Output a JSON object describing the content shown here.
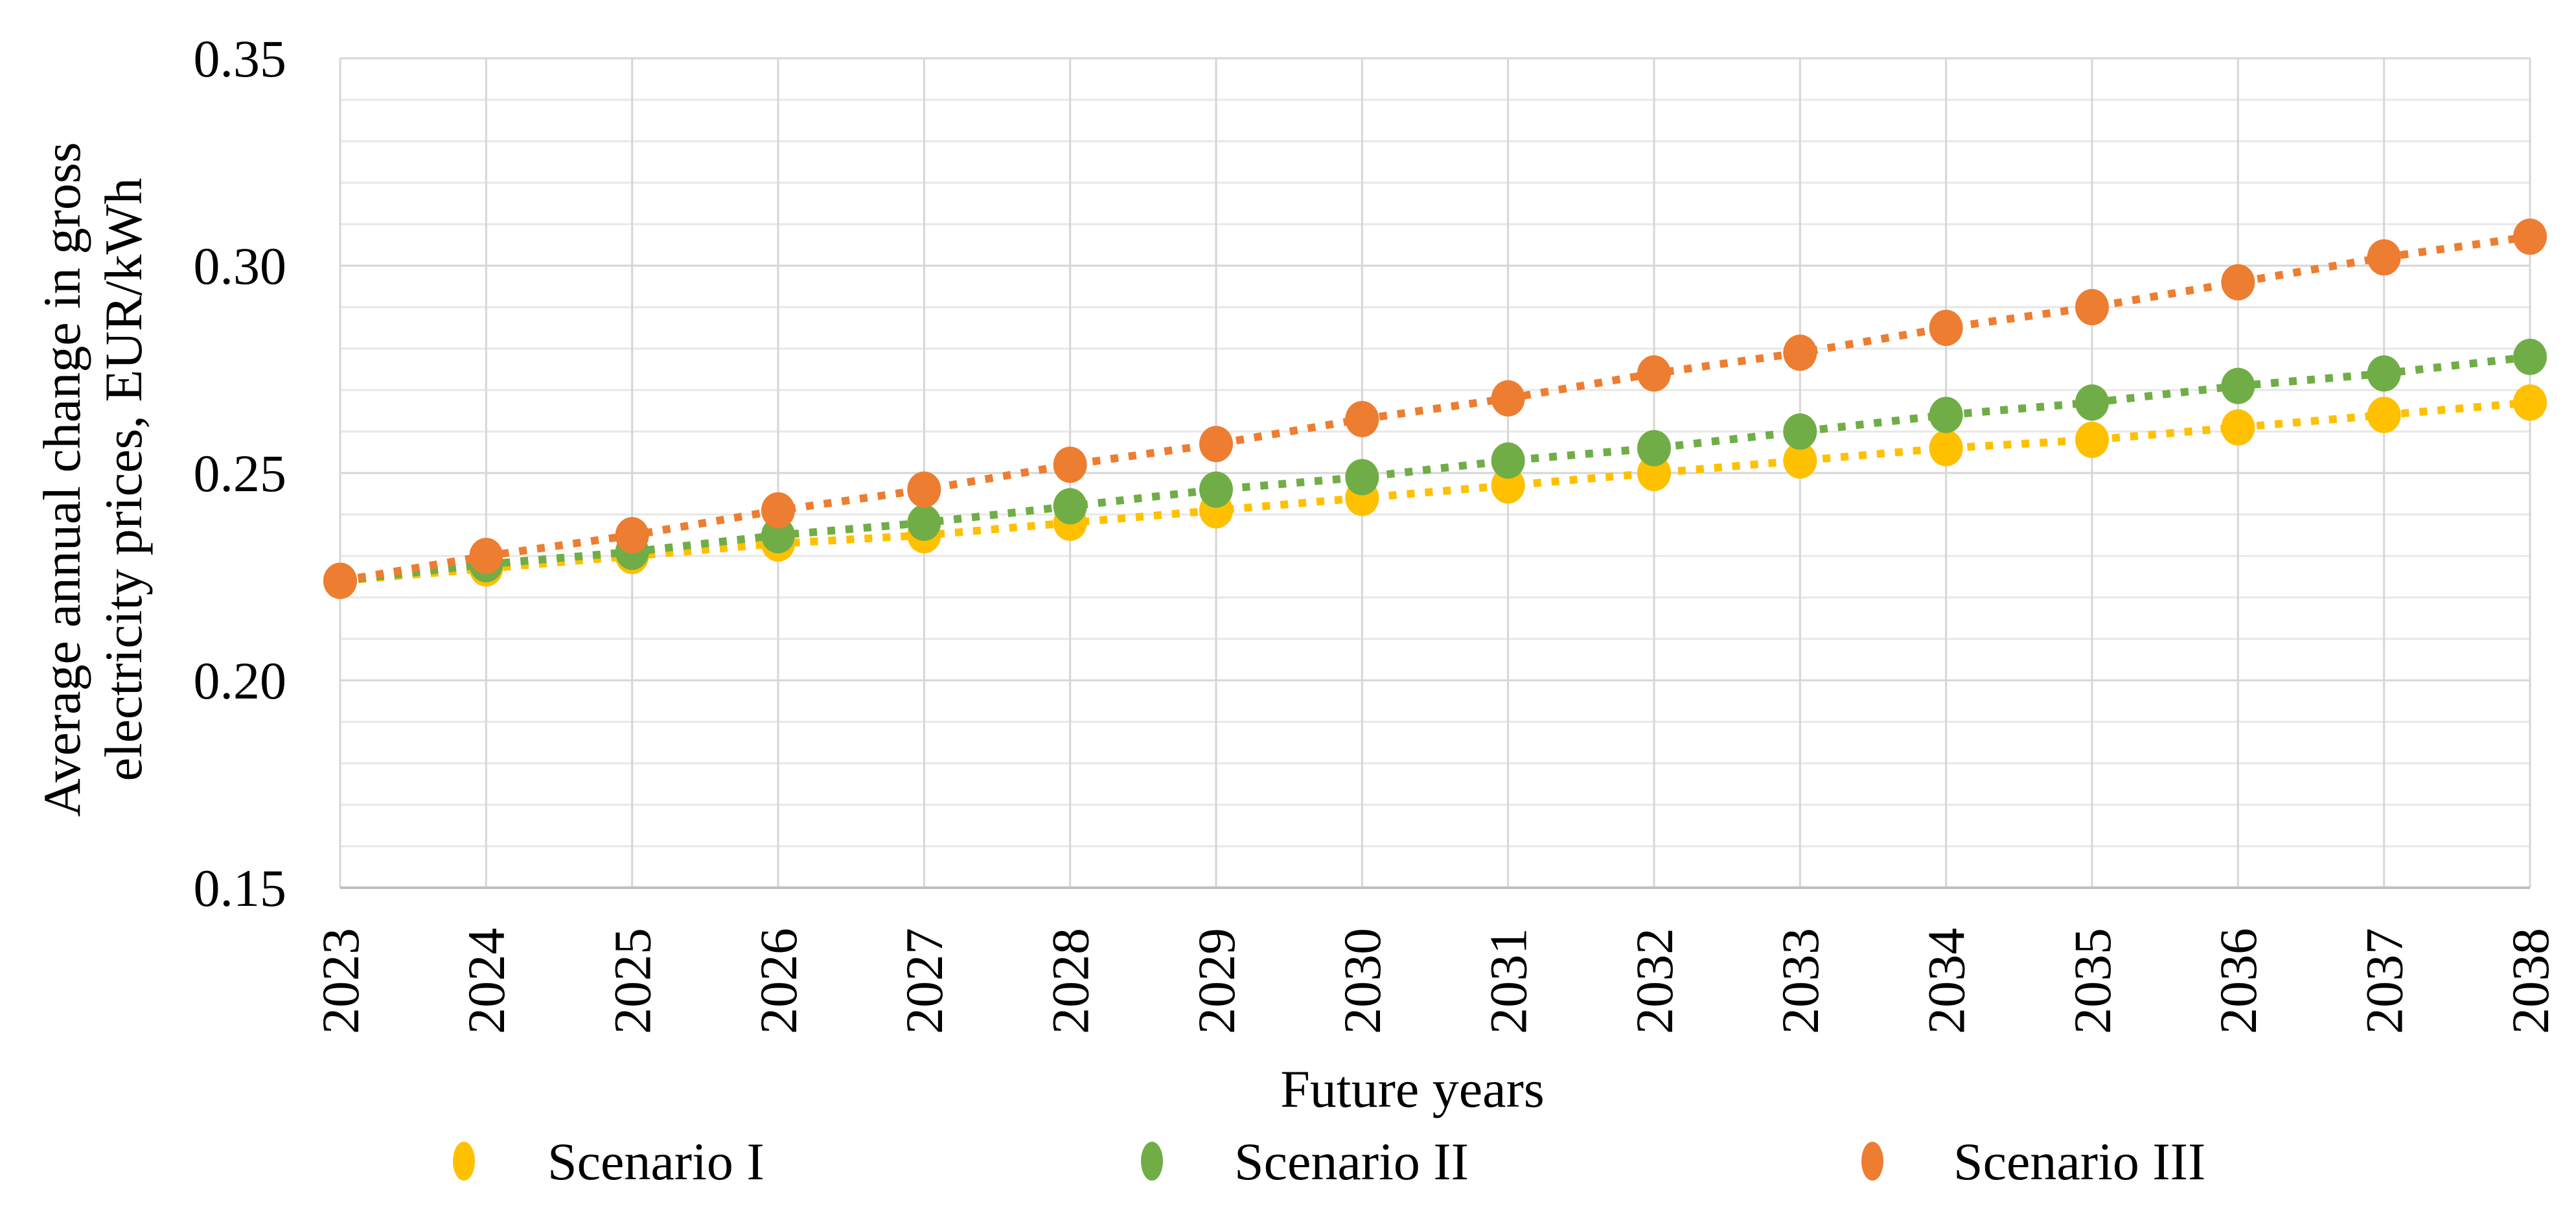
{
  "chart_data": {
    "type": "scatter",
    "title": "",
    "xlabel": "Future years",
    "ylabel": "Average annual change in gross electricity prices, EUR/kWh",
    "ylabel_lines": [
      "Average annual change in gross",
      "electricity prices, EUR/kWh"
    ],
    "categories": [
      "2023",
      "2024",
      "2025",
      "2026",
      "2027",
      "2028",
      "2029",
      "2030",
      "2031",
      "2032",
      "2033",
      "2034",
      "2035",
      "2036",
      "2037",
      "2038"
    ],
    "series": [
      {
        "name": "Scenario I",
        "color": "#FFC000",
        "values": [
          0.224,
          0.227,
          0.23,
          0.233,
          0.235,
          0.238,
          0.241,
          0.244,
          0.247,
          0.25,
          0.253,
          0.256,
          0.258,
          0.261,
          0.264,
          0.267
        ]
      },
      {
        "name": "Scenario II",
        "color": "#70AD47",
        "values": [
          0.224,
          0.228,
          0.231,
          0.235,
          0.238,
          0.242,
          0.246,
          0.249,
          0.253,
          0.256,
          0.26,
          0.264,
          0.267,
          0.271,
          0.274,
          0.278
        ]
      },
      {
        "name": "Scenario III",
        "color": "#ED7D31",
        "values": [
          0.224,
          0.23,
          0.235,
          0.241,
          0.246,
          0.252,
          0.257,
          0.263,
          0.268,
          0.274,
          0.279,
          0.285,
          0.29,
          0.296,
          0.302,
          0.307
        ]
      }
    ],
    "ylim": [
      0.15,
      0.35
    ],
    "ytick_step": 0.05,
    "ytick_labels": [
      "0.15",
      "0.20",
      "0.25",
      "0.30",
      "0.35"
    ],
    "minor_grid_step": 0.01,
    "grid": true,
    "legend_position": "bottom",
    "line_style": "dotted",
    "marker": "circle"
  },
  "colors": {
    "grid_minor": "#E7E7E7",
    "grid_major": "#D6D6D6",
    "axis": "#BFBFBF",
    "text": "#000000",
    "background": "#FFFFFF"
  }
}
